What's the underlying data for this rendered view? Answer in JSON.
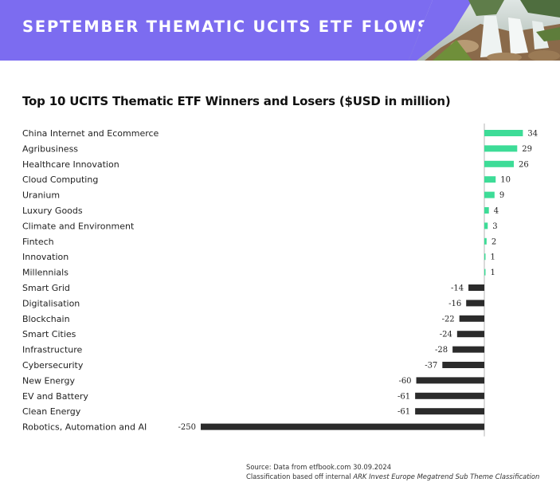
{
  "banner": {
    "title": "SEPTEMBER THEMATIC UCITS ETF FLOWS",
    "photo_icon": "waterfall-photo",
    "accent": "#7c6cf0"
  },
  "chart_data": {
    "type": "bar",
    "orientation": "horizontal",
    "title": "Top 10 UCITS Thematic ETF Winners and Losers ($USD in million)",
    "categories": [
      "China Internet and Ecommerce",
      "Agribusiness",
      "Healthcare Innovation",
      "Cloud Computing",
      "Uranium",
      "Luxury Goods",
      "Climate and Environment",
      "Fintech",
      "Innovation",
      "Millennials",
      "Smart Grid",
      "Digitalisation",
      "Blockchain",
      "Smart Cities",
      "Infrastructure",
      "Cybersecurity",
      "New Energy",
      "EV and Battery",
      "Clean Energy",
      "Robotics, Automation and AI"
    ],
    "values": [
      34,
      29,
      26,
      10,
      9,
      4,
      3,
      2,
      1,
      1,
      -14,
      -16,
      -22,
      -24,
      -28,
      -37,
      -60,
      -61,
      -61,
      -250
    ],
    "xlim": [
      -250,
      34
    ],
    "colors": {
      "positive": "#3ddc97",
      "negative": "#2b2b2b"
    },
    "grid": false,
    "legend": "none"
  },
  "source": {
    "line1": "Source: Data from etfbook.com 30.09.2024",
    "line2_prefix": "Classification based off internal ",
    "line2_emphasis": "ARK Invest Europe Megatrend Sub Theme Classification"
  }
}
